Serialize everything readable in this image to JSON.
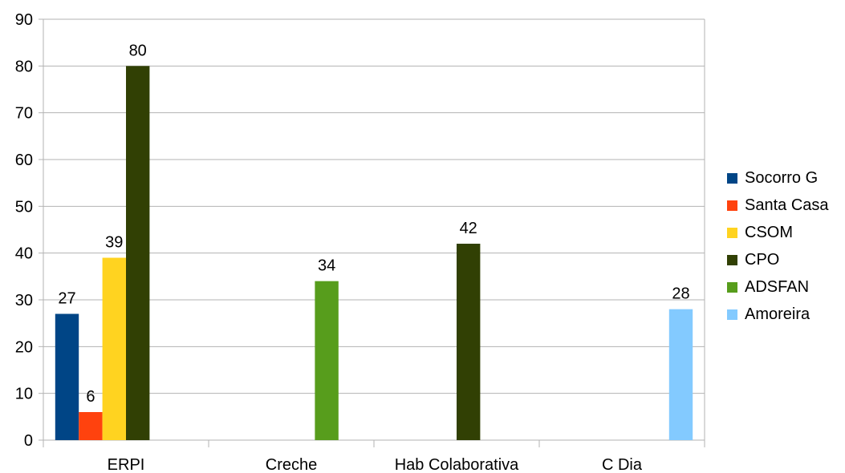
{
  "chart_data": {
    "type": "bar",
    "categories": [
      "ERPI",
      "Creche",
      "Hab Colaborativa",
      "C Dia"
    ],
    "ylim": [
      0,
      90
    ],
    "yticks": [
      0,
      10,
      20,
      30,
      40,
      50,
      60,
      70,
      80,
      90
    ],
    "grid": true,
    "legend_position": "right",
    "series": [
      {
        "name": "Socorro G",
        "color": "#004586",
        "values": [
          27,
          null,
          null,
          null
        ]
      },
      {
        "name": "Santa Casa",
        "color": "#ff420e",
        "values": [
          6,
          null,
          null,
          null
        ]
      },
      {
        "name": "CSOM",
        "color": "#ffd320",
        "values": [
          39,
          null,
          null,
          null
        ]
      },
      {
        "name": "CPO",
        "color": "#314004",
        "values": [
          80,
          null,
          42,
          null
        ]
      },
      {
        "name": "ADSFAN",
        "color": "#579d1c",
        "values": [
          null,
          34,
          null,
          null
        ]
      },
      {
        "name": "Amoreira",
        "color": "#83caff",
        "values": [
          null,
          null,
          null,
          28
        ]
      }
    ]
  }
}
